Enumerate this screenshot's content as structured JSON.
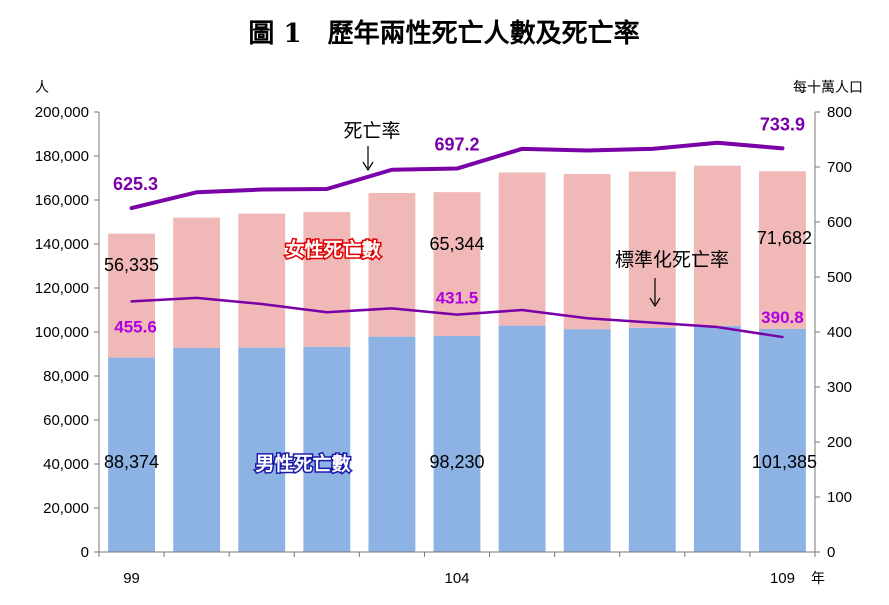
{
  "title": "圖 1　歷年兩性死亡人數及死亡率",
  "left_unit": "人",
  "right_unit": "每十萬人口",
  "x_unit": "年",
  "colors": {
    "female_bar": "#f0b8b6",
    "male_bar": "#8db2e4",
    "crude_rate_line": "#7a00a8",
    "standardized_rate_line": "#7a00a8"
  },
  "annotations": {
    "crude_rate": "死亡率",
    "standardized_rate": "標準化死亡率",
    "female_series": "女性死亡數",
    "male_series": "男性死亡數"
  },
  "chart_data": {
    "type": "bar",
    "stacked": true,
    "categories": [
      99,
      100,
      101,
      102,
      103,
      104,
      105,
      106,
      107,
      108,
      109
    ],
    "x_tick_labels": [
      "99",
      "104",
      "109"
    ],
    "left_axis": {
      "ylim": [
        0,
        200000
      ],
      "ticks": [
        "0",
        "20,000",
        "40,000",
        "60,000",
        "80,000",
        "100,000",
        "120,000",
        "140,000",
        "160,000",
        "180,000",
        "200,000"
      ]
    },
    "right_axis": {
      "ylim": [
        0,
        800
      ],
      "ticks": [
        "0",
        "100",
        "200",
        "300",
        "400",
        "500",
        "600",
        "700",
        "800"
      ]
    },
    "series": [
      {
        "name": "男性死亡數",
        "axis": "left",
        "kind": "bar",
        "values": [
          88374,
          92800,
          92900,
          93300,
          97900,
          98230,
          102900,
          101300,
          101900,
          102800,
          101385
        ]
      },
      {
        "name": "女性死亡數",
        "axis": "left",
        "kind": "bar",
        "values": [
          56335,
          59200,
          60900,
          61200,
          65300,
          65344,
          69600,
          70500,
          71000,
          72800,
          71682
        ]
      },
      {
        "name": "死亡率",
        "axis": "right",
        "kind": "line",
        "values": [
          625.3,
          654,
          659,
          660,
          695,
          697.2,
          733,
          730,
          733,
          744,
          733.9
        ]
      },
      {
        "name": "標準化死亡率",
        "axis": "right",
        "kind": "line",
        "values": [
          455.6,
          462,
          451,
          436,
          443,
          431.5,
          440,
          425,
          417,
          409,
          390.8
        ]
      }
    ],
    "data_labels": {
      "male": [
        {
          "index": 0,
          "text": "88,374"
        },
        {
          "index": 5,
          "text": "98,230"
        },
        {
          "index": 10,
          "text": "101,385"
        }
      ],
      "female": [
        {
          "index": 0,
          "text": "56,335"
        },
        {
          "index": 5,
          "text": "65,344"
        },
        {
          "index": 10,
          "text": "71,682"
        }
      ],
      "crude_rate": [
        {
          "index": 0,
          "text": "625.3"
        },
        {
          "index": 5,
          "text": "697.2"
        },
        {
          "index": 10,
          "text": "733.9"
        }
      ],
      "standardized_rate": [
        {
          "index": 0,
          "text": "455.6"
        },
        {
          "index": 5,
          "text": "431.5"
        },
        {
          "index": 10,
          "text": "390.8"
        }
      ]
    },
    "grid": false
  }
}
